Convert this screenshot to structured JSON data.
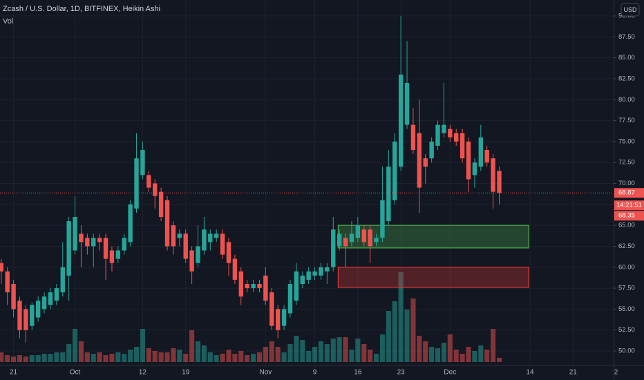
{
  "chart_data": {
    "type": "candlestick",
    "title": "Zcash / U.S. Dollar, 1D, BITFINEX, Heikin Ashi",
    "volume_label": "Vol",
    "currency": "USD",
    "up_color": "#26a69a",
    "down_color": "#ef5350",
    "candles": [
      [
        60.5,
        61,
        58,
        59.5
      ],
      [
        59.5,
        60,
        55.5,
        57
      ],
      [
        58,
        58.5,
        54,
        55
      ],
      [
        56,
        56.5,
        51.5,
        52.5
      ],
      [
        55,
        55.5,
        51,
        52.5
      ],
      [
        53,
        55.8,
        52.5,
        55.5
      ],
      [
        54,
        56.5,
        53.5,
        56
      ],
      [
        55,
        57,
        54.5,
        56.5
      ],
      [
        55.5,
        57.5,
        55,
        57
      ],
      [
        56,
        58,
        55.5,
        57.5
      ],
      [
        57,
        63,
        56.5,
        60
      ],
      [
        59,
        66,
        56,
        65.5
      ],
      [
        62,
        68.5,
        61.5,
        66
      ],
      [
        64,
        65,
        60,
        63
      ],
      [
        63.5,
        64,
        61.5,
        62.5
      ],
      [
        62.5,
        64,
        60,
        63.5
      ],
      [
        63.5,
        64,
        62,
        63
      ],
      [
        63.5,
        64,
        58.5,
        61
      ],
      [
        62,
        62.5,
        59.5,
        60.5
      ],
      [
        61,
        62.5,
        60.5,
        62
      ],
      [
        62,
        64,
        61.5,
        63.5
      ],
      [
        63,
        68,
        62.5,
        67.5
      ],
      [
        67,
        76,
        66.5,
        73
      ],
      [
        71,
        75,
        70.5,
        74
      ],
      [
        71,
        71.5,
        69,
        69.5
      ],
      [
        70,
        70.5,
        67,
        68.5
      ],
      [
        69,
        69.5,
        65.5,
        66
      ],
      [
        68,
        68.5,
        62,
        62.5
      ],
      [
        65,
        65.5,
        61.5,
        62.5
      ],
      [
        63.5,
        64.5,
        62.5,
        64
      ],
      [
        64,
        64.5,
        60.5,
        61
      ],
      [
        62,
        62.5,
        58,
        59.5
      ],
      [
        60.5,
        65,
        60,
        62.5
      ],
      [
        62,
        66,
        61.5,
        64.5
      ],
      [
        63,
        64.5,
        62,
        64
      ],
      [
        63.5,
        64.5,
        63,
        64
      ],
      [
        64,
        64.5,
        61,
        61.5
      ],
      [
        63,
        63.5,
        59,
        60.5
      ],
      [
        61,
        61.5,
        58,
        58.5
      ],
      [
        59.5,
        60,
        55.5,
        56.5
      ],
      [
        58,
        58.5,
        57,
        57.5
      ],
      [
        57.5,
        58.5,
        57,
        58
      ],
      [
        58,
        58.5,
        57,
        57.5
      ],
      [
        59,
        60,
        55.5,
        56
      ],
      [
        57,
        57.5,
        52.5,
        53
      ],
      [
        55,
        55.5,
        51.5,
        52.5
      ],
      [
        53,
        55.5,
        52.5,
        55
      ],
      [
        54.5,
        58.5,
        54,
        58
      ],
      [
        56,
        60.5,
        55.5,
        59.5
      ],
      [
        58,
        59.5,
        57.5,
        59
      ],
      [
        58.5,
        60,
        58,
        59.5
      ],
      [
        59,
        60,
        58.5,
        59.5
      ],
      [
        59,
        60.5,
        58.5,
        60
      ],
      [
        59.5,
        60.5,
        58,
        60
      ],
      [
        60,
        66,
        59.5,
        64.5
      ],
      [
        62.5,
        64.5,
        62,
        64
      ],
      [
        63.5,
        64,
        60,
        62.5
      ],
      [
        63,
        65.5,
        62.5,
        64
      ],
      [
        63.5,
        66,
        63,
        65
      ],
      [
        64.5,
        65,
        62.5,
        63
      ],
      [
        64.5,
        65,
        60.5,
        62.5
      ],
      [
        63,
        64,
        62.5,
        63.5
      ],
      [
        63.5,
        72,
        63,
        68
      ],
      [
        65.5,
        74,
        65,
        72
      ],
      [
        68,
        76,
        67.5,
        75
      ],
      [
        72,
        90,
        71.5,
        83
      ],
      [
        77,
        87,
        76.5,
        82
      ],
      [
        77,
        79,
        73.5,
        74
      ],
      [
        76,
        80,
        66.5,
        69.5
      ],
      [
        73,
        73.5,
        70,
        72
      ],
      [
        73,
        75.5,
        72.5,
        75
      ],
      [
        74.5,
        77.5,
        74,
        77
      ],
      [
        76,
        82,
        75.5,
        77
      ],
      [
        76.5,
        77,
        75,
        75.5
      ],
      [
        76,
        76.5,
        74.5,
        75
      ],
      [
        76,
        76.5,
        72.5,
        73
      ],
      [
        75,
        75.5,
        69,
        70.5
      ],
      [
        71,
        73,
        69.5,
        72.5
      ],
      [
        72,
        77,
        71.5,
        75.5
      ],
      [
        74,
        74.5,
        72,
        72.5
      ],
      [
        73,
        73.5,
        67,
        69
      ],
      [
        71.5,
        72,
        67.5,
        68.87
      ]
    ],
    "volume": [
      14,
      10,
      8,
      10,
      8,
      10,
      10,
      12,
      12,
      14,
      14,
      26,
      48,
      30,
      14,
      12,
      14,
      10,
      12,
      14,
      12,
      18,
      22,
      48,
      20,
      16,
      14,
      14,
      20,
      18,
      12,
      46,
      30,
      24,
      14,
      10,
      12,
      18,
      12,
      16,
      10,
      12,
      14,
      22,
      30,
      22,
      14,
      26,
      38,
      32,
      16,
      22,
      30,
      26,
      34,
      36,
      36,
      18,
      34,
      26,
      18,
      12,
      40,
      74,
      88,
      130,
      76,
      92,
      38,
      30,
      22,
      20,
      28,
      40,
      18,
      12,
      22,
      16,
      24,
      18,
      48,
      6
    ],
    "xlim": [
      -0.2,
      99.6
    ],
    "xticks": [
      {
        "value": 2,
        "label": "21"
      },
      {
        "value": 12,
        "label": "Oct"
      },
      {
        "value": 23,
        "label": "12"
      },
      {
        "value": 30,
        "label": "19"
      },
      {
        "value": 43,
        "label": "Nov"
      },
      {
        "value": 51,
        "label": "9"
      },
      {
        "value": 58,
        "label": "16"
      },
      {
        "value": 65,
        "label": "23"
      },
      {
        "value": 73,
        "label": "Dec"
      },
      {
        "value": 86,
        "label": "14"
      },
      {
        "value": 93,
        "label": "21"
      },
      {
        "value": 100,
        "label": "2"
      }
    ],
    "ylim": [
      48.35,
      91.9
    ],
    "yticks": [
      {
        "value": 50,
        "label": "50.00"
      },
      {
        "value": 52.5,
        "label": "52.50"
      },
      {
        "value": 55,
        "label": "55.00"
      },
      {
        "value": 57.5,
        "label": "57.50"
      },
      {
        "value": 60,
        "label": "60.00"
      },
      {
        "value": 62.5,
        "label": "62.50"
      },
      {
        "value": 65,
        "label": "65.00"
      },
      {
        "value": 67.5,
        "label": "67.50"
      },
      {
        "value": 70,
        "label": "70.00"
      },
      {
        "value": 72.5,
        "label": "72.50"
      },
      {
        "value": 75,
        "label": "75.00"
      },
      {
        "value": 77.5,
        "label": "77.50"
      },
      {
        "value": 80,
        "label": "80.00"
      },
      {
        "value": 82.5,
        "label": "82.50"
      },
      {
        "value": 85,
        "label": "85.00"
      },
      {
        "value": 87.5,
        "label": "87.50"
      },
      {
        "value": 90,
        "label": "90.00"
      }
    ],
    "grid": true,
    "last_price": 68.87,
    "countdown": "14:21:51",
    "prev_price": 68.35,
    "zones": [
      {
        "color": "#4caf50",
        "xlim": [
          54.8,
          85.8
        ],
        "ylim": [
          62.3,
          65
        ]
      },
      {
        "color": "#e53935",
        "xlim": [
          54.8,
          85.8
        ],
        "ylim": [
          57.6,
          60
        ]
      }
    ]
  }
}
